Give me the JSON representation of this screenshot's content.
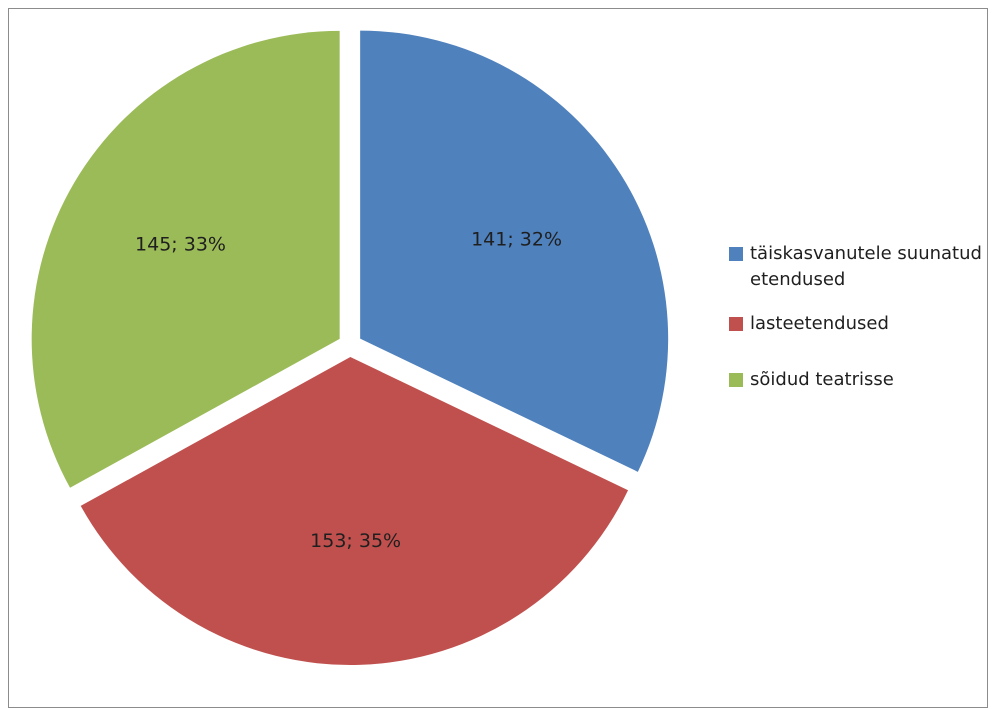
{
  "chart_data": {
    "type": "pie",
    "categories": [
      "täiskasvanutele suunatud etendused",
      "lasteetendused",
      "sõidud teatrisse"
    ],
    "values": [
      141,
      153,
      145
    ],
    "percent_labels": [
      "32%",
      "35%",
      "33%"
    ],
    "data_labels": [
      "141; 32%",
      "153; 35%",
      "145; 33%"
    ],
    "colors": [
      "#4F81BD",
      "#C0504D",
      "#9BBB59"
    ],
    "legend_position": "right",
    "exploded": true
  }
}
